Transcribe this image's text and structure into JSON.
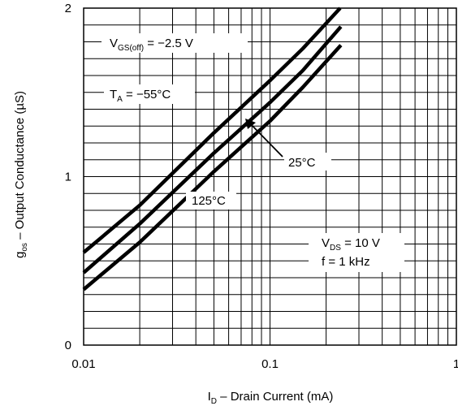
{
  "chart_data": {
    "type": "line",
    "x_scale": "log",
    "y_scale": "linear",
    "xlim": [
      0.01,
      1
    ],
    "ylim": [
      0,
      2
    ],
    "grid": true,
    "x_ticks": [
      {
        "value": 0.01,
        "label": "0.01"
      },
      {
        "value": 0.1,
        "label": "0.1"
      },
      {
        "value": 1,
        "label": "1"
      }
    ],
    "y_ticks": [
      {
        "value": 0,
        "label": "0"
      },
      {
        "value": 1,
        "label": "1"
      },
      {
        "value": 2,
        "label": "2"
      }
    ],
    "xlabel": {
      "main": "I",
      "sub": "D",
      "rest": " – Drain Current (mA)"
    },
    "ylabel": {
      "main": "g",
      "sub": "os",
      "rest": " – Output Conductance (µS)"
    },
    "series": [
      {
        "name": "−55°C",
        "x": [
          0.01,
          0.02,
          0.05,
          0.1,
          0.15,
          0.238
        ],
        "y": [
          0.55,
          0.83,
          1.26,
          1.57,
          1.76,
          2.0
        ]
      },
      {
        "name": "25°C",
        "x": [
          0.01,
          0.02,
          0.05,
          0.1,
          0.15,
          0.24
        ],
        "y": [
          0.43,
          0.72,
          1.14,
          1.44,
          1.63,
          1.89
        ]
      },
      {
        "name": "125°C",
        "x": [
          0.01,
          0.02,
          0.05,
          0.1,
          0.15,
          0.24
        ],
        "y": [
          0.33,
          0.61,
          1.03,
          1.33,
          1.53,
          1.78
        ]
      }
    ],
    "annotations": {
      "vgs": {
        "main": "V",
        "sub": "GS(off)",
        "rest": " = −2.5 V"
      },
      "ta": {
        "main": "T",
        "sub": "A",
        "rest": " = −55°C"
      },
      "t25": "25°C",
      "t125": "125°C",
      "vds": {
        "main": "V",
        "sub": "DS",
        "rest": " = 10 V"
      },
      "freq": "f = 1 kHz"
    }
  }
}
